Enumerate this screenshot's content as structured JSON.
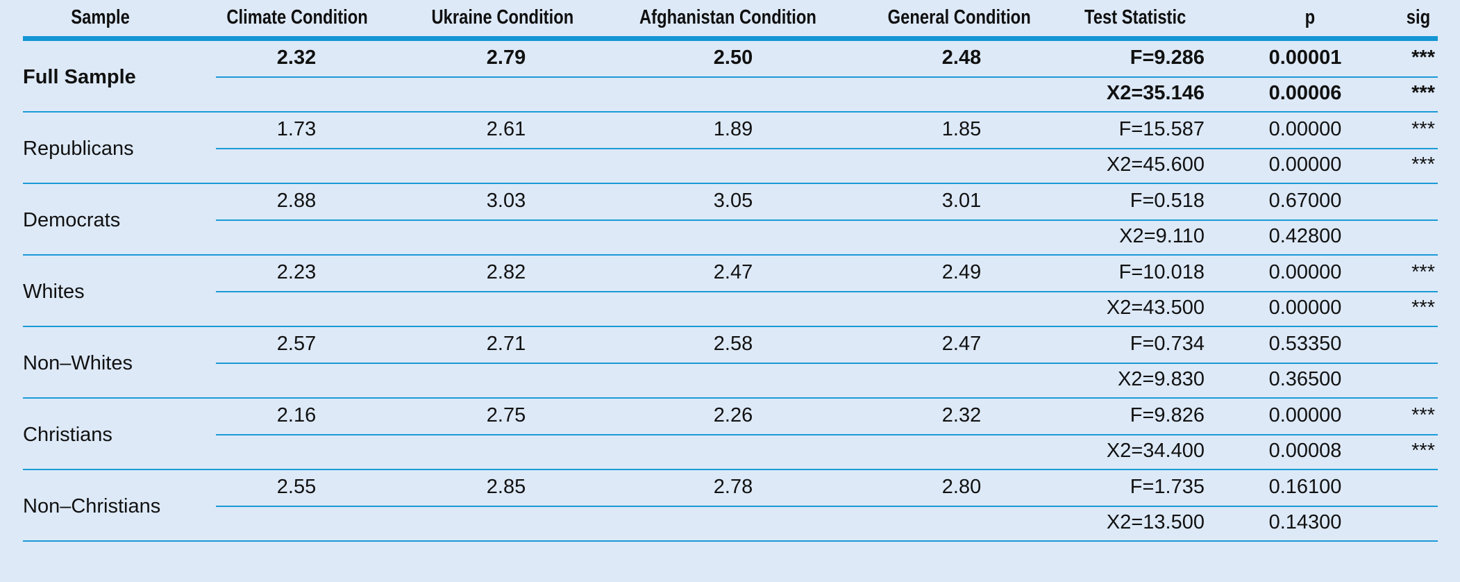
{
  "header": {
    "sample": "Sample",
    "climate": "Climate Condition",
    "ukraine": "Ukraine Condition",
    "afghanistan": "Afghanistan Condition",
    "general": "General Condition",
    "test": "Test Statistic",
    "p": "p",
    "sig": "sig"
  },
  "rows": [
    {
      "sample": "Full Sample",
      "climate": "2.32",
      "ukraine": "2.79",
      "afghanistan": "2.50",
      "general": "2.48",
      "f_stat": "F=9.286",
      "f_p": "0.00001",
      "f_sig": "***",
      "x2_stat": "X2=35.146",
      "x2_p": "0.00006",
      "x2_sig": "***"
    },
    {
      "sample": "Republicans",
      "climate": "1.73",
      "ukraine": "2.61",
      "afghanistan": "1.89",
      "general": "1.85",
      "f_stat": "F=15.587",
      "f_p": "0.00000",
      "f_sig": "***",
      "x2_stat": "X2=45.600",
      "x2_p": "0.00000",
      "x2_sig": "***"
    },
    {
      "sample": "Democrats",
      "climate": "2.88",
      "ukraine": "3.03",
      "afghanistan": "3.05",
      "general": "3.01",
      "f_stat": "F=0.518",
      "f_p": "0.67000",
      "f_sig": "",
      "x2_stat": "X2=9.110",
      "x2_p": "0.42800",
      "x2_sig": ""
    },
    {
      "sample": "Whites",
      "climate": "2.23",
      "ukraine": "2.82",
      "afghanistan": "2.47",
      "general": "2.49",
      "f_stat": "F=10.018",
      "f_p": "0.00000",
      "f_sig": "***",
      "x2_stat": "X2=43.500",
      "x2_p": "0.00000",
      "x2_sig": "***"
    },
    {
      "sample": "Non–Whites",
      "climate": "2.57",
      "ukraine": "2.71",
      "afghanistan": "2.58",
      "general": "2.47",
      "f_stat": "F=0.734",
      "f_p": "0.53350",
      "f_sig": "",
      "x2_stat": "X2=9.830",
      "x2_p": "0.36500",
      "x2_sig": ""
    },
    {
      "sample": "Christians",
      "climate": "2.16",
      "ukraine": "2.75",
      "afghanistan": "2.26",
      "general": "2.32",
      "f_stat": "F=9.826",
      "f_p": "0.00000",
      "f_sig": "***",
      "x2_stat": "X2=34.400",
      "x2_p": "0.00008",
      "x2_sig": "***"
    },
    {
      "sample": "Non–Christians",
      "climate": "2.55",
      "ukraine": "2.85",
      "afghanistan": "2.78",
      "general": "2.80",
      "f_stat": "F=1.735",
      "f_p": "0.16100",
      "f_sig": "",
      "x2_stat": "X2=13.500",
      "x2_p": "0.14300",
      "x2_sig": ""
    }
  ]
}
